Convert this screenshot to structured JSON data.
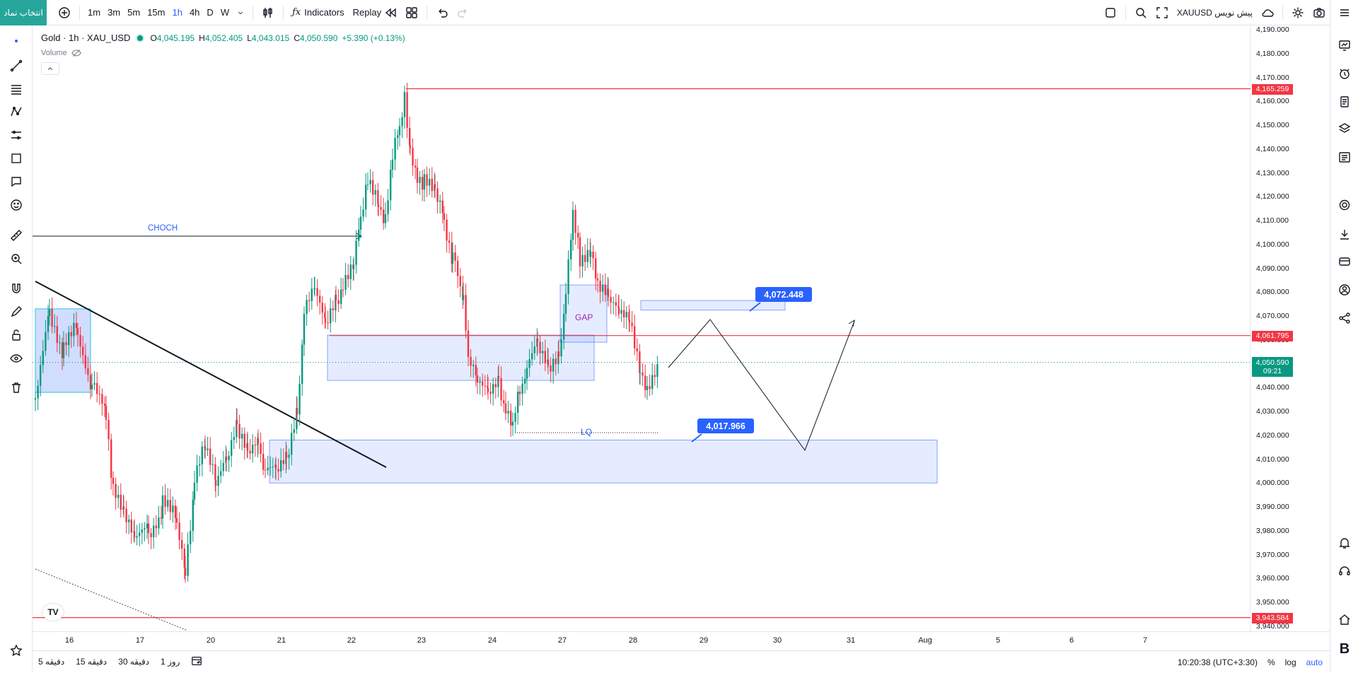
{
  "toolbar": {
    "symbol_search": "انتخاب نماد",
    "intervals": [
      "1m",
      "3m",
      "5m",
      "15m",
      "1h",
      "4h",
      "D",
      "W"
    ],
    "active_interval": "1h",
    "indicators_label": "Indicators",
    "replay_label": "Replay",
    "right_symbol_label": "XAUUSD پیش نویس"
  },
  "legend": {
    "symbol": "Gold · 1h · XAU_USD",
    "open_label": "O",
    "open": "4,045.195",
    "high_label": "H",
    "high": "4,052.405",
    "low_label": "L",
    "low": "4,043.015",
    "close_label": "C",
    "close": "4,050.590",
    "change": "+5.390 (+0.13%)",
    "volume_label": "Volume"
  },
  "price_axis": {
    "labels": [
      "4,190.000",
      "4,180.000",
      "4,170.000",
      "4,160.000",
      "4,150.000",
      "4,140.000",
      "4,130.000",
      "4,120.000",
      "4,110.000",
      "4,100.000",
      "4,090.000",
      "4,080.000",
      "4,070.000",
      "4,060.000",
      "4,050.000",
      "4,040.000",
      "4,030.000",
      "4,020.000",
      "4,010.000",
      "4,000.000",
      "3,990.000",
      "3,980.000",
      "3,970.000",
      "3,960.000",
      "3,950.000",
      "3,940.000"
    ],
    "values": [
      4190,
      4180,
      4170,
      4160,
      4150,
      4140,
      4130,
      4120,
      4110,
      4100,
      4090,
      4080,
      4070,
      4060,
      4050,
      4040,
      4030,
      4020,
      4010,
      4000,
      3990,
      3980,
      3970,
      3960,
      3950,
      3940
    ],
    "tags": [
      {
        "label": "4,165.259",
        "value": 4165.259,
        "color": "#f23645"
      },
      {
        "label": "4,061.795",
        "value": 4061.795,
        "color": "#f23645"
      },
      {
        "label": "3,943.584",
        "value": 3943.584,
        "color": "#f23645"
      }
    ],
    "current_price": "4,050.590",
    "current_price_value": 4050.59,
    "countdown": "09:21",
    "current_color": "#089981"
  },
  "time_axis": {
    "labels": [
      "16",
      "17",
      "20",
      "21",
      "22",
      "23",
      "24",
      "27",
      "28",
      "29",
      "30",
      "31",
      "Aug",
      "5",
      "6",
      "7"
    ]
  },
  "annotations": {
    "choch": "CHOCH",
    "gap": "GAP",
    "lq": "LQ",
    "target_high": "4,072.448",
    "target_low": "4,017.966"
  },
  "chart_data": {
    "type": "candlestick",
    "symbol": "XAU_USD",
    "timeframe": "1h",
    "horizontal_levels": [
      4165.259,
      4061.795,
      3943.584
    ],
    "zones": [
      {
        "label": "GAP",
        "from": 4067,
        "to": 4083
      },
      {
        "label": "",
        "from": 4043,
        "to": 4062
      },
      {
        "label": "",
        "from": 4000,
        "to": 4018
      },
      {
        "label": "",
        "from": 4072.5,
        "to": 4076.5
      }
    ],
    "callouts": [
      4072.448,
      4017.966
    ],
    "last": {
      "open": 4045.195,
      "high": 4052.405,
      "low": 4043.015,
      "close": 4050.59
    }
  },
  "bottom": {
    "ranges": [
      "5 دقیقه",
      "15 دقیقه",
      "30 دقیقه",
      "1 روز"
    ],
    "clock": "10:20:38 (UTC+3:30)",
    "pct": "%",
    "log": "log",
    "auto": "auto"
  },
  "colors": {
    "up": "#089981",
    "down": "#f23645",
    "accent": "#2962ff",
    "zone": "rgba(41,98,255,0.12)"
  }
}
